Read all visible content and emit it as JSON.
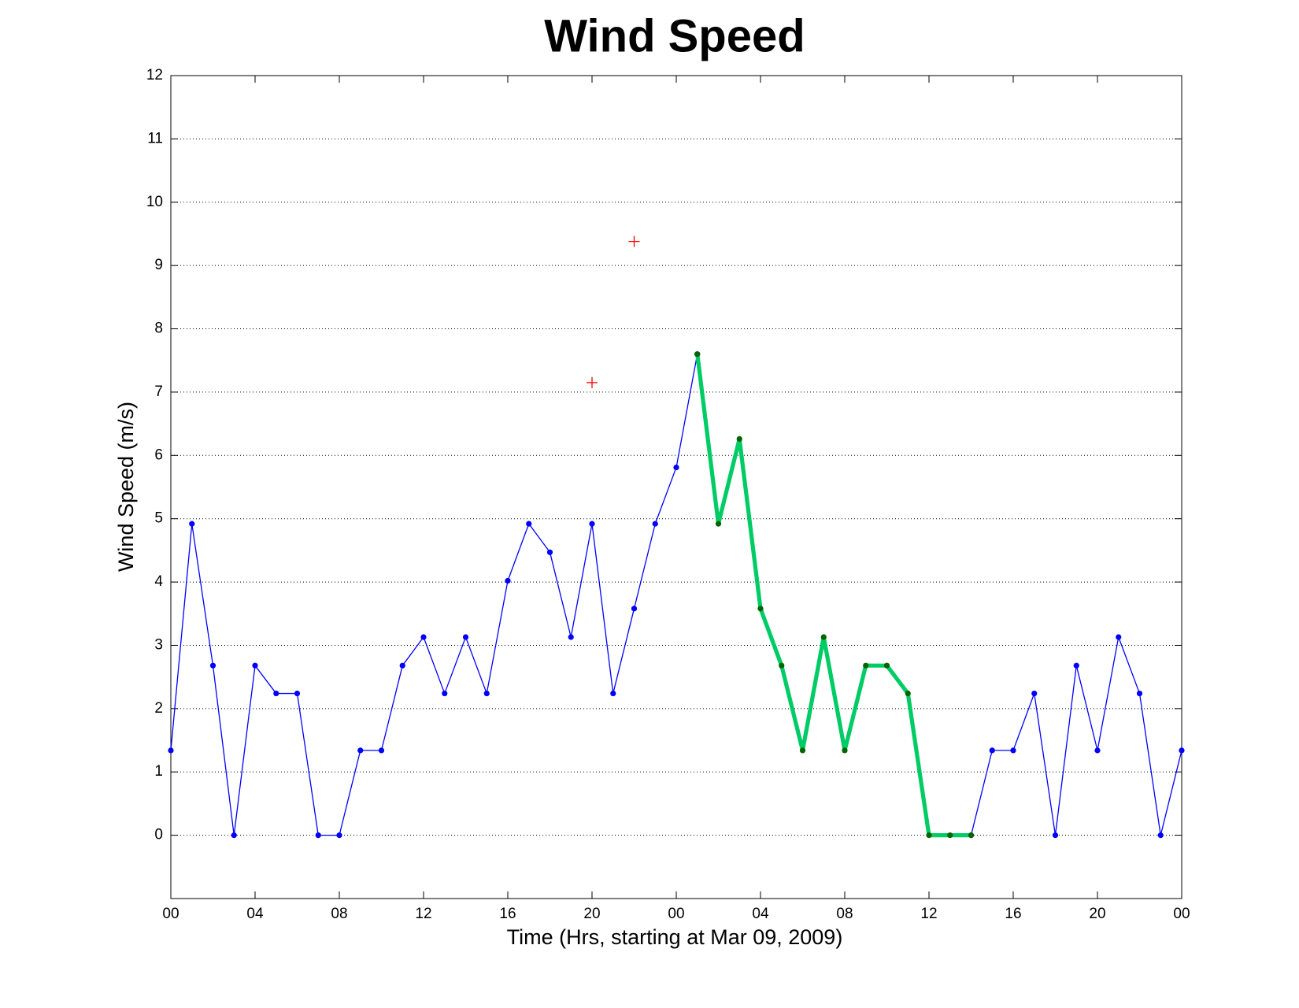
{
  "chart_data": {
    "type": "line",
    "title": "Wind Speed",
    "x_label": "Time (Hrs, starting at Mar 09, 2009)",
    "y_label": "Wind Speed (m/s)",
    "x": [
      0,
      1,
      2,
      3,
      4,
      5,
      6,
      7,
      8,
      9,
      10,
      11,
      12,
      13,
      14,
      15,
      16,
      17,
      18,
      19,
      20,
      21,
      22,
      23,
      24,
      25,
      26,
      27,
      28,
      29,
      30,
      31,
      32,
      33,
      34,
      35,
      36,
      37,
      38,
      39,
      40,
      41,
      42,
      43,
      44,
      45,
      46,
      47,
      48
    ],
    "series": [
      {
        "color": "#0000ff",
        "line_width": 1,
        "marker": "dot",
        "marker_color": "#0000ff",
        "values": [
          1.34,
          4.92,
          2.68,
          0,
          2.68,
          2.24,
          2.24,
          0,
          0,
          1.34,
          1.34,
          2.68,
          3.13,
          2.24,
          3.13,
          2.24,
          4.02,
          4.92,
          4.47,
          3.13,
          4.92,
          2.24,
          3.58,
          4.92,
          5.81,
          7.6,
          null,
          null,
          null,
          null,
          null,
          null,
          null,
          null,
          null,
          null,
          null,
          null,
          0,
          1.34,
          1.34,
          2.24,
          0,
          2.68,
          1.34,
          3.13,
          2.24,
          0,
          1.34
        ]
      },
      {
        "color": "#00cc66",
        "line_width": 4,
        "marker": "dot",
        "marker_color": "#006400",
        "values": [
          null,
          null,
          null,
          null,
          null,
          null,
          null,
          null,
          null,
          null,
          null,
          null,
          null,
          null,
          null,
          null,
          null,
          null,
          null,
          null,
          null,
          null,
          null,
          null,
          null,
          7.6,
          4.92,
          6.26,
          3.58,
          2.68,
          1.34,
          3.13,
          1.34,
          2.68,
          2.68,
          2.24,
          0,
          0,
          0,
          null,
          null,
          null,
          null,
          null,
          null,
          null,
          null,
          null,
          null
        ]
      },
      {
        "color": "#ff0000",
        "line_width": 0,
        "marker": "plus",
        "marker_color": "#ff0000",
        "values": [
          null,
          null,
          null,
          null,
          null,
          null,
          null,
          null,
          null,
          null,
          null,
          null,
          null,
          null,
          null,
          null,
          null,
          null,
          null,
          null,
          7.15,
          null,
          9.38,
          null,
          null,
          null,
          null,
          null,
          null,
          null,
          null,
          null,
          null,
          null,
          null,
          null,
          null,
          null,
          null,
          null,
          null,
          null,
          null,
          null,
          null,
          null,
          null,
          null,
          null
        ]
      }
    ],
    "xlim": [
      0,
      48
    ],
    "xticks": [
      {
        "value": 0,
        "label": "00"
      },
      {
        "value": 4,
        "label": "04"
      },
      {
        "value": 8,
        "label": "08"
      },
      {
        "value": 12,
        "label": "12"
      },
      {
        "value": 16,
        "label": "16"
      },
      {
        "value": 20,
        "label": "20"
      },
      {
        "value": 24,
        "label": "00"
      },
      {
        "value": 28,
        "label": "04"
      },
      {
        "value": 32,
        "label": "08"
      },
      {
        "value": 36,
        "label": "12"
      },
      {
        "value": 40,
        "label": "16"
      },
      {
        "value": 44,
        "label": "20"
      },
      {
        "value": 48,
        "label": "00"
      }
    ],
    "ylim": [
      -1,
      12
    ],
    "yticks": [
      0,
      1,
      2,
      3,
      4,
      5,
      6,
      7,
      8,
      9,
      10,
      11,
      12
    ],
    "grid": "y"
  }
}
